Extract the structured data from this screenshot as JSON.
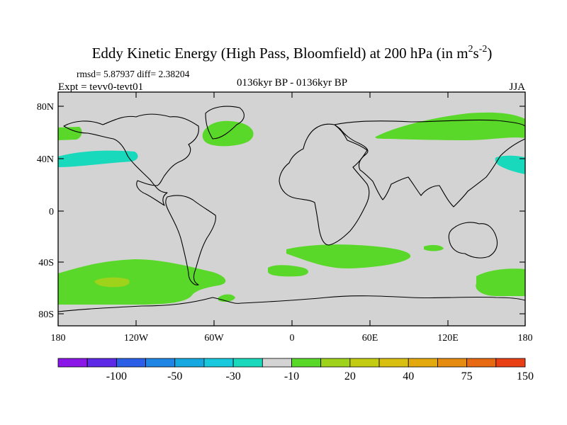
{
  "title": {
    "main": "Eddy Kinetic Energy (High Pass, Bloomfield) at 200 hPa (in m",
    "sup1": "2",
    "mid": "s",
    "sup2": "-2",
    "end": ")"
  },
  "stats": "rmsd= 5.87937 diff= 2.38204",
  "experiment": "Expt = tevv0-tevt01",
  "period": "0136kyr BP - 0136kyr BP",
  "season": "JJA",
  "lat_ticks": [
    "80N",
    "40N",
    "0",
    "40S",
    "80S"
  ],
  "lon_ticks": [
    "180",
    "120W",
    "60W",
    "0",
    "60E",
    "120E",
    "180"
  ],
  "colorbar": {
    "labels": [
      "-100",
      "-50",
      "-30",
      "-10",
      "20",
      "40",
      "75",
      "150"
    ],
    "colors": [
      "#8a16e8",
      "#5d29e6",
      "#2c5fe8",
      "#1f86e4",
      "#16a8e0",
      "#18c8dc",
      "#19d9bd",
      "#d3d3d3",
      "#5ad82a",
      "#9fd21a",
      "#c4cc12",
      "#d9bf0f",
      "#e4a90e",
      "#e58b10",
      "#e76912",
      "#e83f14"
    ]
  },
  "map_colors": {
    "background": "#d3d3d3",
    "positive_low": "#5ad82a",
    "positive_mid": "#9fd21a",
    "negative_low": "#19d9bd",
    "coast": "#000000"
  }
}
